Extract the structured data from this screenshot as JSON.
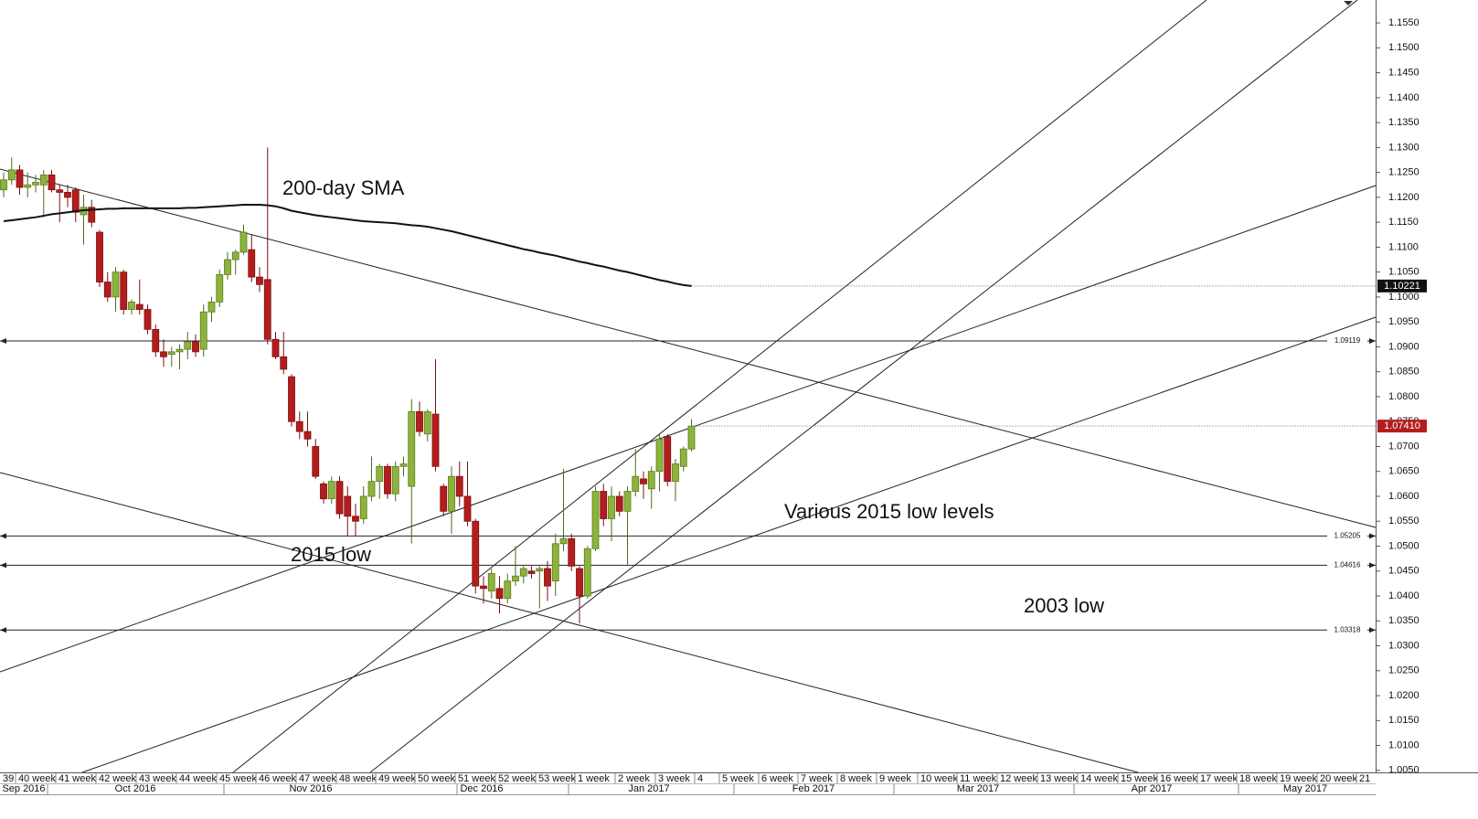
{
  "chart_data": {
    "type": "candlestick",
    "up_color": "#8db33a",
    "down_color": "#b41d1d",
    "open": [
      1.1215,
      1.1235,
      1.1255,
      1.122,
      1.1225,
      1.1225,
      1.1245,
      1.1215,
      1.121,
      1.1215,
      1.1165,
      1.118,
      1.113,
      1.103,
      1.1,
      1.105,
      1.0975,
      1.0985,
      1.0975,
      1.0935,
      1.089,
      1.0885,
      1.089,
      1.0895,
      1.091,
      1.0895,
      1.097,
      1.099,
      1.1045,
      1.1075,
      1.109,
      1.1095,
      1.104,
      1.1035,
      1.0915,
      1.088,
      1.084,
      1.075,
      1.073,
      1.07,
      1.0625,
      1.0595,
      1.063,
      1.06,
      1.056,
      1.0555,
      1.06,
      1.063,
      1.066,
      1.0605,
      1.066,
      1.062,
      1.077,
      1.0725,
      1.0765,
      1.062,
      1.057,
      1.064,
      1.06,
      1.055,
      1.042,
      1.041,
      1.0415,
      1.0395,
      1.043,
      1.044,
      1.045,
      1.045,
      1.0455,
      1.043,
      1.0505,
      1.0515,
      1.0455,
      1.04,
      1.0495,
      1.061,
      1.0555,
      1.06,
      1.057,
      1.061,
      1.0635,
      1.0615,
      1.065,
      1.072,
      1.063,
      1.066,
      1.0695
    ],
    "high": [
      1.125,
      1.128,
      1.1265,
      1.125,
      1.1245,
      1.1255,
      1.1255,
      1.1225,
      1.1225,
      1.122,
      1.1205,
      1.1195,
      1.1135,
      1.105,
      1.106,
      1.1055,
      1.0995,
      1.1035,
      1.0985,
      1.0945,
      1.0915,
      1.09,
      1.0905,
      1.093,
      1.0925,
      1.0985,
      1.1,
      1.1055,
      1.109,
      1.1095,
      1.1145,
      1.1125,
      1.106,
      1.13,
      1.093,
      1.093,
      1.0845,
      1.077,
      1.077,
      1.0715,
      1.063,
      1.064,
      1.064,
      1.062,
      1.0585,
      1.062,
      1.068,
      1.0665,
      1.0665,
      1.067,
      1.068,
      1.0795,
      1.079,
      1.0775,
      1.0875,
      1.0625,
      1.066,
      1.067,
      1.067,
      1.0555,
      1.044,
      1.0455,
      1.044,
      1.0445,
      1.05,
      1.046,
      1.046,
      1.046,
      1.047,
      1.0525,
      1.0655,
      1.0525,
      1.046,
      1.05,
      1.062,
      1.0625,
      1.062,
      1.061,
      1.062,
      1.0695,
      1.065,
      1.066,
      1.0725,
      1.0725,
      1.0675,
      1.07,
      1.0755
    ],
    "low": [
      1.12,
      1.1225,
      1.1205,
      1.12,
      1.121,
      1.116,
      1.121,
      1.115,
      1.118,
      1.115,
      1.1105,
      1.114,
      1.102,
      1.099,
      1.097,
      1.0965,
      1.0965,
      1.0965,
      1.0925,
      1.088,
      1.086,
      1.086,
      1.0855,
      1.0875,
      1.088,
      1.088,
      1.095,
      1.098,
      1.1035,
      1.1045,
      1.1085,
      1.103,
      1.101,
      1.0905,
      1.0875,
      1.0845,
      1.074,
      1.0715,
      1.07,
      1.0635,
      1.0585,
      1.0585,
      1.0555,
      1.052,
      1.052,
      1.0545,
      1.059,
      1.0595,
      1.0595,
      1.059,
      1.064,
      1.0505,
      1.072,
      1.071,
      1.065,
      1.056,
      1.0525,
      1.058,
      1.054,
      1.0405,
      1.0385,
      1.0395,
      1.0365,
      1.0385,
      1.042,
      1.0425,
      1.0435,
      1.0375,
      1.039,
      1.04,
      1.049,
      1.045,
      1.0345,
      1.0395,
      1.049,
      1.054,
      1.051,
      1.056,
      1.046,
      1.06,
      1.0595,
      1.0575,
      1.061,
      1.062,
      1.059,
      1.065,
      1.069
    ],
    "close": [
      1.1235,
      1.1255,
      1.122,
      1.1225,
      1.123,
      1.1245,
      1.1215,
      1.121,
      1.12,
      1.117,
      1.118,
      1.115,
      1.103,
      1.1,
      1.105,
      1.0975,
      1.099,
      1.0975,
      1.0935,
      1.089,
      1.088,
      1.089,
      1.0895,
      1.091,
      1.089,
      1.097,
      1.099,
      1.1045,
      1.1075,
      1.109,
      1.113,
      1.104,
      1.1025,
      1.0915,
      1.088,
      1.0855,
      1.075,
      1.073,
      1.0715,
      1.064,
      1.0595,
      1.063,
      1.0565,
      1.056,
      1.055,
      1.06,
      1.063,
      1.066,
      1.0605,
      1.066,
      1.0665,
      1.077,
      1.073,
      1.077,
      1.066,
      1.057,
      1.064,
      1.06,
      1.055,
      1.042,
      1.0415,
      1.0445,
      1.0395,
      1.043,
      1.044,
      1.0455,
      1.0445,
      1.0455,
      1.042,
      1.0505,
      1.0515,
      1.046,
      1.04,
      1.0495,
      1.061,
      1.0555,
      1.06,
      1.057,
      1.061,
      1.064,
      1.0625,
      1.065,
      1.0715,
      1.063,
      1.0665,
      1.0695,
      1.0741
    ],
    "sma": {
      "color": "#111111",
      "values": [
        1.1152,
        1.1154,
        1.1156,
        1.1158,
        1.116,
        1.1163,
        1.1166,
        1.1168,
        1.117,
        1.1172,
        1.1174,
        1.1175,
        1.1176,
        1.1177,
        1.1177,
        1.1178,
        1.1178,
        1.1178,
        1.1178,
        1.1178,
        1.1178,
        1.1178,
        1.1178,
        1.1179,
        1.1179,
        1.118,
        1.1181,
        1.1182,
        1.1183,
        1.1184,
        1.1185,
        1.1185,
        1.1185,
        1.1184,
        1.1182,
        1.1178,
        1.1173,
        1.117,
        1.1167,
        1.1164,
        1.1162,
        1.116,
        1.1158,
        1.1156,
        1.1154,
        1.1152,
        1.1151,
        1.115,
        1.1149,
        1.1148,
        1.1146,
        1.1144,
        1.1143,
        1.1141,
        1.1138,
        1.1135,
        1.1132,
        1.1128,
        1.1124,
        1.112,
        1.1116,
        1.1112,
        1.1108,
        1.1104,
        1.11,
        1.1096,
        1.1093,
        1.1089,
        1.1086,
        1.1083,
        1.1079,
        1.1075,
        1.1071,
        1.1068,
        1.1064,
        1.1061,
        1.1057,
        1.1053,
        1.105,
        1.1046,
        1.1042,
        1.1038,
        1.1034,
        1.1031,
        1.1027,
        1.1024,
        1.10221
      ]
    },
    "price_tag": {
      "value": 1.0741,
      "label": "1.07410"
    },
    "levels": [
      1.09119,
      1.05205,
      1.04616,
      1.03318
    ],
    "annotations": [
      "200-day SMA",
      "2015 low",
      "Various 2015 low levels",
      "2003 low"
    ],
    "ylim": [
      1.0046,
      1.1596
    ],
    "yticks": [
      {
        "value": 1.005,
        "label": "1.0050"
      },
      {
        "value": 1.01,
        "label": "1.0100"
      },
      {
        "value": 1.015,
        "label": "1.0150"
      },
      {
        "value": 1.02,
        "label": "1.0200"
      },
      {
        "value": 1.025,
        "label": "1.0250"
      },
      {
        "value": 1.03,
        "label": "1.0300"
      },
      {
        "value": 1.035,
        "label": "1.0350"
      },
      {
        "value": 1.04,
        "label": "1.0400"
      },
      {
        "value": 1.045,
        "label": "1.0450"
      },
      {
        "value": 1.05,
        "label": "1.0500"
      },
      {
        "value": 1.055,
        "label": "1.0550"
      },
      {
        "value": 1.06,
        "label": "1.0600"
      },
      {
        "value": 1.065,
        "label": "1.0650"
      },
      {
        "value": 1.07,
        "label": "1.0700"
      },
      {
        "value": 1.075,
        "label": "1.0750"
      },
      {
        "value": 1.08,
        "label": "1.0800"
      },
      {
        "value": 1.085,
        "label": "1.0850"
      },
      {
        "value": 1.09,
        "label": "1.0900"
      },
      {
        "value": 1.095,
        "label": "1.0950"
      },
      {
        "value": 1.1,
        "label": "1.1000"
      },
      {
        "value": 1.105,
        "label": "1.1050"
      },
      {
        "value": 1.11,
        "label": "1.1100"
      },
      {
        "value": 1.115,
        "label": "1.1150"
      },
      {
        "value": 1.12,
        "label": "1.1200"
      },
      {
        "value": 1.125,
        "label": "1.1250"
      },
      {
        "value": 1.13,
        "label": "1.1300"
      },
      {
        "value": 1.135,
        "label": "1.1350"
      },
      {
        "value": 1.14,
        "label": "1.1400"
      },
      {
        "value": 1.145,
        "label": "1.1450"
      },
      {
        "value": 1.15,
        "label": "1.1500"
      },
      {
        "value": 1.155,
        "label": "1.1550"
      }
    ],
    "week_labels": [
      "39",
      "40 week",
      "41 week",
      "42 week",
      "43 week",
      "44 week",
      "45 week",
      "46 week",
      "47 week",
      "48 week",
      "49 week",
      "50 week",
      "51 week",
      "52 week",
      "53 week",
      "1 week",
      "2 week",
      "3 week",
      "4",
      "5 week",
      "6 week",
      "7 week",
      "8 week",
      "9 week",
      "10 week",
      "11 week",
      "12 week",
      "13 week",
      "14 week",
      "15 week",
      "16 week",
      "17 week",
      "18 week",
      "19 week",
      "20 week",
      "21"
    ],
    "month_labels": [
      "Sep 2016",
      "Oct 2016",
      "Nov 2016",
      "Dec 2016",
      "Jan 2017",
      "Feb 2017",
      "Mar 2017",
      "Apr 2017",
      "May 2017"
    ]
  }
}
